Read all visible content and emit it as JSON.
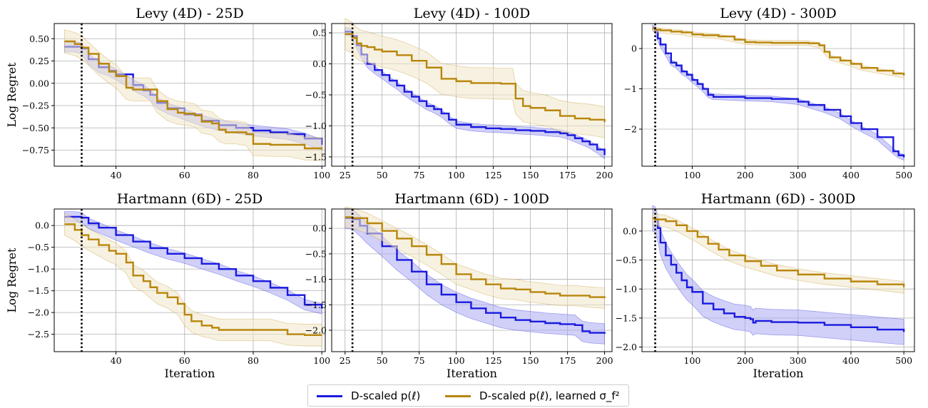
{
  "colors": {
    "blue": "#1a1adf",
    "gold": "#b8860b",
    "blue_fill": "#aaaaf2",
    "gold_fill": "#f1e6c8"
  },
  "legend": {
    "placement": "bottom-center",
    "items": [
      {
        "label": "D-scaled p(ℓ)",
        "color": "#1a1adf"
      },
      {
        "label": "D-scaled p(ℓ), learned σ_f²",
        "color": "#b8860b"
      }
    ]
  },
  "chart_data": [
    {
      "type": "line",
      "title": "Levy (4D) - 25D",
      "xlabel": "",
      "ylabel": "Log Regret",
      "xlim": [
        22,
        101
      ],
      "ylim": [
        -0.93,
        0.67
      ],
      "grid": true,
      "vline": 30,
      "xticks": [
        40,
        60,
        80,
        100
      ],
      "yticks": [
        0.5,
        0.25,
        0.0,
        -0.25,
        -0.5,
        -0.75
      ],
      "ytick_labels": [
        "0.50",
        "0.25",
        "0.00",
        "−0.25",
        "−0.50",
        "−0.75"
      ],
      "series": [
        {
          "color": "blue",
          "x": [
            25,
            28,
            30,
            32,
            35,
            38,
            40,
            45,
            48,
            50,
            52,
            55,
            60,
            65,
            70,
            75,
            80,
            85,
            90,
            95,
            100
          ],
          "y": [
            0.41,
            0.41,
            0.39,
            0.27,
            0.18,
            0.14,
            0.1,
            -0.02,
            -0.08,
            -0.13,
            -0.22,
            -0.28,
            -0.35,
            -0.42,
            -0.47,
            -0.5,
            -0.53,
            -0.55,
            -0.57,
            -0.62,
            -0.69
          ],
          "band": 0.06
        },
        {
          "color": "gold",
          "x": [
            25,
            28,
            30,
            32,
            35,
            38,
            40,
            43,
            45,
            48,
            50,
            52,
            55,
            58,
            60,
            63,
            65,
            68,
            70,
            72,
            75,
            78,
            80,
            85,
            90,
            95,
            100
          ],
          "y": [
            0.47,
            0.44,
            0.4,
            0.33,
            0.22,
            0.13,
            0.08,
            -0.05,
            -0.07,
            -0.07,
            -0.07,
            -0.2,
            -0.29,
            -0.33,
            -0.34,
            -0.36,
            -0.43,
            -0.45,
            -0.52,
            -0.55,
            -0.55,
            -0.57,
            -0.68,
            -0.69,
            -0.69,
            -0.73,
            -0.74
          ],
          "band": 0.13
        }
      ]
    },
    {
      "type": "line",
      "title": "Levy (4D) - 100D",
      "xlabel": "",
      "ylabel": "",
      "xlim": [
        16,
        205
      ],
      "ylim": [
        -1.65,
        0.65
      ],
      "grid": true,
      "vline": 30,
      "xticks": [
        25,
        50,
        75,
        100,
        125,
        150,
        175,
        200
      ],
      "yticks": [
        0.5,
        0.0,
        -0.5,
        -1.0,
        -1.5
      ],
      "ytick_labels": [
        "0.5",
        "0.0",
        "−0.5",
        "−1.0",
        "−1.5"
      ],
      "series": [
        {
          "color": "blue",
          "x": [
            25,
            28,
            30,
            33,
            36,
            40,
            45,
            50,
            55,
            60,
            65,
            70,
            75,
            80,
            85,
            90,
            95,
            100,
            110,
            120,
            130,
            140,
            150,
            160,
            170,
            175,
            180,
            185,
            190,
            195,
            200
          ],
          "y": [
            0.52,
            0.52,
            0.45,
            0.3,
            0.15,
            0.0,
            -0.1,
            -0.18,
            -0.27,
            -0.35,
            -0.45,
            -0.53,
            -0.6,
            -0.68,
            -0.73,
            -0.8,
            -0.9,
            -0.98,
            -1.02,
            -1.04,
            -1.05,
            -1.07,
            -1.08,
            -1.1,
            -1.12,
            -1.15,
            -1.2,
            -1.25,
            -1.3,
            -1.38,
            -1.47
          ],
          "band": 0.06
        },
        {
          "color": "gold",
          "x": [
            25,
            30,
            33,
            36,
            40,
            45,
            50,
            60,
            70,
            80,
            90,
            100,
            110,
            120,
            130,
            138,
            140,
            145,
            150,
            160,
            170,
            180,
            190,
            200
          ],
          "y": [
            0.48,
            0.42,
            0.33,
            0.29,
            0.27,
            0.23,
            0.2,
            0.14,
            0.05,
            -0.06,
            -0.24,
            -0.28,
            -0.31,
            -0.31,
            -0.32,
            -0.32,
            -0.56,
            -0.68,
            -0.71,
            -0.75,
            -0.84,
            -0.88,
            -0.9,
            -0.94
          ],
          "band": 0.25
        }
      ]
    },
    {
      "type": "line",
      "title": "Levy (4D) - 300D",
      "xlabel": "",
      "ylabel": "",
      "xlim": [
        5,
        520
      ],
      "ylim": [
        -2.92,
        0.62
      ],
      "grid": true,
      "vline": 30,
      "xticks": [
        100,
        200,
        300,
        400,
        500
      ],
      "yticks": [
        0,
        -1,
        -2
      ],
      "ytick_labels": [
        "0",
        "−1",
        "−2"
      ],
      "series": [
        {
          "color": "blue",
          "x": [
            25,
            30,
            35,
            40,
            50,
            60,
            70,
            80,
            90,
            100,
            110,
            120,
            130,
            140,
            150,
            200,
            250,
            300,
            320,
            350,
            380,
            400,
            420,
            450,
            480,
            490,
            500
          ],
          "y": [
            0.52,
            0.45,
            0.25,
            0.1,
            -0.12,
            -0.35,
            -0.42,
            -0.57,
            -0.65,
            -0.78,
            -0.88,
            -1.0,
            -1.15,
            -1.2,
            -1.2,
            -1.23,
            -1.25,
            -1.32,
            -1.4,
            -1.52,
            -1.68,
            -1.85,
            -2.0,
            -2.2,
            -2.55,
            -2.65,
            -2.7
          ],
          "band": 0.07
        },
        {
          "color": "gold",
          "x": [
            25,
            30,
            40,
            60,
            80,
            100,
            120,
            150,
            180,
            200,
            220,
            250,
            280,
            300,
            320,
            340,
            350,
            360,
            380,
            400,
            420,
            450,
            480,
            500
          ],
          "y": [
            0.5,
            0.47,
            0.45,
            0.42,
            0.4,
            0.35,
            0.33,
            0.3,
            0.22,
            0.16,
            0.15,
            0.14,
            0.14,
            0.14,
            0.13,
            0.08,
            -0.08,
            -0.22,
            -0.3,
            -0.38,
            -0.48,
            -0.55,
            -0.62,
            -0.67
          ],
          "band": 0.06
        }
      ]
    },
    {
      "type": "line",
      "title": "Hartmann (6D) - 25D",
      "xlabel": "Iteration",
      "ylabel": "Log Regret",
      "xlim": [
        22,
        101
      ],
      "ylim": [
        -2.9,
        0.38
      ],
      "grid": true,
      "vline": 30,
      "xticks": [
        40,
        60,
        80,
        100
      ],
      "yticks": [
        0.0,
        -0.5,
        -1.0,
        -1.5,
        -2.0,
        -2.5
      ],
      "ytick_labels": [
        "0.0",
        "−0.5",
        "−1.0",
        "−1.5",
        "−2.0",
        "−2.5"
      ],
      "series": [
        {
          "color": "blue",
          "x": [
            25,
            28,
            30,
            32,
            35,
            40,
            45,
            50,
            55,
            60,
            65,
            70,
            75,
            80,
            85,
            90,
            95,
            100
          ],
          "y": [
            0.2,
            0.2,
            0.18,
            0.05,
            -0.05,
            -0.22,
            -0.37,
            -0.52,
            -0.65,
            -0.75,
            -0.88,
            -1.0,
            -1.15,
            -1.28,
            -1.43,
            -1.6,
            -1.82,
            -1.91
          ],
          "band": 0.12
        },
        {
          "color": "gold",
          "x": [
            25,
            28,
            30,
            32,
            35,
            38,
            40,
            43,
            45,
            48,
            50,
            52,
            55,
            58,
            60,
            62,
            65,
            68,
            70,
            75,
            80,
            85,
            90,
            95,
            100
          ],
          "y": [
            0.03,
            -0.1,
            -0.22,
            -0.32,
            -0.45,
            -0.58,
            -0.65,
            -0.85,
            -1.15,
            -1.28,
            -1.42,
            -1.55,
            -1.65,
            -1.8,
            -2.05,
            -2.2,
            -2.3,
            -2.35,
            -2.4,
            -2.4,
            -2.4,
            -2.4,
            -2.5,
            -2.52,
            -2.52
          ],
          "band": 0.25
        }
      ]
    },
    {
      "type": "line",
      "title": "Hartmann (6D) - 100D",
      "xlabel": "Iteration",
      "ylabel": "",
      "xlim": [
        16,
        205
      ],
      "ylim": [
        -2.42,
        0.38
      ],
      "grid": true,
      "vline": 30,
      "xticks": [
        25,
        50,
        75,
        100,
        125,
        150,
        175,
        200
      ],
      "yticks": [
        0.0,
        -0.5,
        -1.0,
        -1.5,
        -2.0
      ],
      "ytick_labels": [
        "0.0",
        "−0.5",
        "−1.0",
        "−1.5",
        "−2.0"
      ],
      "series": [
        {
          "color": "blue",
          "x": [
            25,
            30,
            35,
            40,
            50,
            60,
            70,
            80,
            90,
            100,
            110,
            120,
            130,
            140,
            150,
            160,
            170,
            180,
            185,
            190,
            200
          ],
          "y": [
            0.2,
            0.18,
            0.05,
            -0.1,
            -0.35,
            -0.62,
            -0.85,
            -1.1,
            -1.3,
            -1.45,
            -1.57,
            -1.66,
            -1.75,
            -1.8,
            -1.83,
            -1.86,
            -1.88,
            -1.9,
            -2.02,
            -2.05,
            -2.07
          ],
          "band": 0.2
        },
        {
          "color": "gold",
          "x": [
            25,
            30,
            40,
            50,
            60,
            70,
            80,
            90,
            100,
            110,
            120,
            130,
            140,
            150,
            160,
            170,
            180,
            190,
            200
          ],
          "y": [
            0.22,
            0.2,
            0.1,
            -0.05,
            -0.2,
            -0.35,
            -0.52,
            -0.7,
            -0.9,
            -1.0,
            -1.1,
            -1.18,
            -1.2,
            -1.25,
            -1.28,
            -1.32,
            -1.32,
            -1.35,
            -1.37
          ],
          "band": 0.2
        }
      ]
    },
    {
      "type": "line",
      "title": "Hartmann (6D) - 300D",
      "xlabel": "Iteration",
      "ylabel": "",
      "xlim": [
        5,
        520
      ],
      "ylim": [
        -2.08,
        0.38
      ],
      "grid": true,
      "vline": 30,
      "xticks": [
        100,
        200,
        300,
        400,
        500
      ],
      "yticks": [
        0.0,
        -0.5,
        -1.0,
        -1.5,
        -2.0
      ],
      "ytick_labels": [
        "0.0",
        "−0.5",
        "−1.0",
        "−1.5",
        "−2.0"
      ],
      "series": [
        {
          "color": "blue",
          "x": [
            25,
            30,
            35,
            40,
            50,
            60,
            70,
            80,
            90,
            100,
            120,
            140,
            160,
            180,
            200,
            210,
            215,
            220,
            250,
            300,
            350,
            400,
            450,
            500
          ],
          "y": [
            0.22,
            0.2,
            0.05,
            -0.2,
            -0.42,
            -0.58,
            -0.72,
            -0.85,
            -0.97,
            -1.05,
            -1.25,
            -1.35,
            -1.42,
            -1.48,
            -1.5,
            -1.52,
            -1.58,
            -1.55,
            -1.57,
            -1.58,
            -1.62,
            -1.66,
            -1.7,
            -1.74
          ],
          "band": 0.22
        },
        {
          "color": "gold",
          "x": [
            25,
            30,
            50,
            70,
            90,
            110,
            130,
            150,
            170,
            200,
            230,
            260,
            300,
            350,
            400,
            450,
            500
          ],
          "y": [
            0.22,
            0.2,
            0.17,
            0.1,
            0.0,
            -0.1,
            -0.22,
            -0.32,
            -0.42,
            -0.52,
            -0.6,
            -0.68,
            -0.75,
            -0.82,
            -0.87,
            -0.92,
            -0.97
          ],
          "band": 0.1
        }
      ]
    }
  ]
}
